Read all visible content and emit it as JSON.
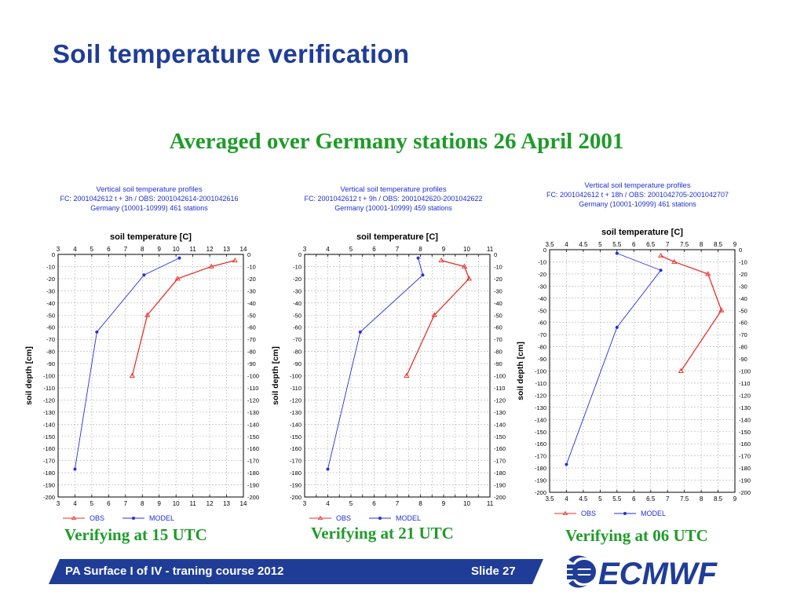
{
  "slide": {
    "title": "Soil temperature verification",
    "subtitle": "Averaged over Germany stations 26 April 2001",
    "footer_text": "PA Surface I of IV - traning course 2012",
    "slide_number": "Slide 27",
    "logo_text": "ECMWF",
    "colors": {
      "title": "#1f3d97",
      "subtitle": "#1f9b2a",
      "footer": "#1f3d97",
      "obs": "#e8302a",
      "model": "#2430e0",
      "chart_header": "#2030d0"
    }
  },
  "chart_data": [
    {
      "type": "line",
      "caption": "Verifying at 15 UTC",
      "header": [
        "Vertical soil temperature profiles",
        "FC: 2001042612 t +   3h  /  OBS: 2001042614-2001042616",
        "Germany       (10001-10999)     461 stations"
      ],
      "title": "soil temperature [C]",
      "ylabel": "soil depth [cm]",
      "xlim": [
        3,
        14
      ],
      "xticks": [
        3,
        4,
        5,
        6,
        7,
        8,
        9,
        10,
        11,
        12,
        13,
        14
      ],
      "ylim": [
        -200,
        0
      ],
      "yticks": [
        0,
        -10,
        -20,
        -30,
        -40,
        -50,
        -60,
        -70,
        -80,
        -90,
        -100,
        -110,
        -120,
        -130,
        -140,
        -150,
        -160,
        -170,
        -180,
        -190,
        -200
      ],
      "grid": true,
      "legend": "bottom-left",
      "series": [
        {
          "name": "OBS",
          "color": "#e8302a",
          "marker": "triangle",
          "points": [
            [
              13.5,
              -5
            ],
            [
              12.1,
              -10
            ],
            [
              10.1,
              -20
            ],
            [
              8.3,
              -50
            ],
            [
              7.4,
              -100
            ]
          ]
        },
        {
          "name": "MODEL",
          "color": "#2430e0",
          "marker": "dot",
          "points": [
            [
              10.2,
              -3
            ],
            [
              8.1,
              -17
            ],
            [
              5.3,
              -64
            ],
            [
              4.0,
              -177
            ]
          ]
        }
      ]
    },
    {
      "type": "line",
      "caption": "Verifying at 21 UTC",
      "header": [
        "Vertical soil temperature profiles",
        "FC: 2001042612 t +   9h  /  OBS: 2001042620-2001042622",
        "Germany       (10001-10999)     459 stations"
      ],
      "title": "soil temperature [C]",
      "ylabel": "soil depth [cm]",
      "xlim": [
        3,
        11
      ],
      "xticks": [
        3,
        3.5,
        4,
        4.5,
        5,
        5.5,
        6,
        6.5,
        7,
        7.5,
        8,
        8.5,
        9,
        9.5,
        10,
        10.5,
        11
      ],
      "xtick_labels": [
        "3",
        "",
        "4",
        "",
        "5",
        "",
        "6",
        "",
        "7",
        "",
        "8",
        "",
        "9",
        "",
        "10",
        "",
        "11"
      ],
      "ylim": [
        -200,
        0
      ],
      "yticks": [
        0,
        -10,
        -20,
        -30,
        -40,
        -50,
        -60,
        -70,
        -80,
        -90,
        -100,
        -110,
        -120,
        -130,
        -140,
        -150,
        -160,
        -170,
        -180,
        -190,
        -200
      ],
      "grid": true,
      "legend": "bottom-left",
      "series": [
        {
          "name": "OBS",
          "color": "#e8302a",
          "marker": "triangle",
          "points": [
            [
              8.9,
              -5
            ],
            [
              9.9,
              -10
            ],
            [
              10.1,
              -20
            ],
            [
              8.6,
              -50
            ],
            [
              7.4,
              -100
            ]
          ]
        },
        {
          "name": "MODEL",
          "color": "#2430e0",
          "marker": "dot",
          "points": [
            [
              7.9,
              -3
            ],
            [
              8.1,
              -17
            ],
            [
              5.4,
              -64
            ],
            [
              4.0,
              -177
            ]
          ]
        }
      ]
    },
    {
      "type": "line",
      "caption": "Verifying at 06 UTC",
      "header": [
        "Vertical soil temperature profiles",
        "FC: 2001042612 t +  18h  /  OBS: 2001042705-2001042707",
        "Germany       (10001-10999)     461 stations"
      ],
      "title": "soil temperature [C]",
      "ylabel": "soil depth [cm]",
      "xlim": [
        3.5,
        9
      ],
      "xticks": [
        3.5,
        4,
        4.5,
        5,
        5.5,
        6,
        6.5,
        7,
        7.5,
        8,
        8.5,
        9
      ],
      "ylim": [
        -200,
        0
      ],
      "yticks": [
        0,
        -10,
        -20,
        -30,
        -40,
        -50,
        -60,
        -70,
        -80,
        -90,
        -100,
        -110,
        -120,
        -130,
        -140,
        -150,
        -160,
        -170,
        -180,
        -190,
        -200
      ],
      "grid": true,
      "legend": "bottom-left",
      "series": [
        {
          "name": "OBS",
          "color": "#e8302a",
          "marker": "triangle",
          "points": [
            [
              6.8,
              -5
            ],
            [
              7.2,
              -10
            ],
            [
              8.2,
              -20
            ],
            [
              8.6,
              -50
            ],
            [
              7.4,
              -100
            ]
          ]
        },
        {
          "name": "MODEL",
          "color": "#2430e0",
          "marker": "dot",
          "points": [
            [
              5.5,
              -3
            ],
            [
              6.8,
              -17
            ],
            [
              5.5,
              -64
            ],
            [
              4.0,
              -177
            ]
          ]
        }
      ]
    }
  ]
}
